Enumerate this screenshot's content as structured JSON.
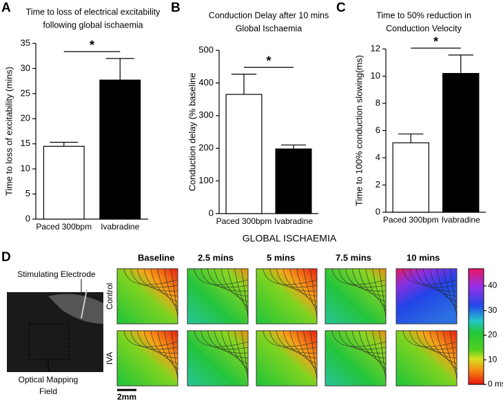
{
  "chart_data": [
    {
      "type": "bar",
      "panel": "A",
      "title": [
        "Time to loss of electrical excitability",
        "following global ischaemia"
      ],
      "y_label": "Time to loss of excitability (mins)",
      "categories": [
        "Paced 300bpm",
        "Ivabradine"
      ],
      "values": [
        14.5,
        27.7
      ],
      "errors": [
        0.8,
        4.3
      ],
      "colors": [
        "#ffffff",
        "#000000"
      ],
      "ylim": [
        0,
        35
      ],
      "yticks": [
        0,
        5,
        10,
        15,
        20,
        25,
        30,
        35
      ],
      "significance": "*"
    },
    {
      "type": "bar",
      "panel": "B",
      "title": [
        "Conduction Delay after 10 mins",
        "Global Ischaemia"
      ],
      "y_label": "Conduction delay (% baseline",
      "categories": [
        "Paced 300bpm",
        "Ivabradine"
      ],
      "values": [
        365,
        198
      ],
      "errors": [
        62,
        12
      ],
      "colors": [
        "#ffffff",
        "#000000"
      ],
      "ylim": [
        0,
        500
      ],
      "yticks": [
        0,
        100,
        200,
        300,
        400,
        500
      ],
      "significance": "*"
    },
    {
      "type": "bar",
      "panel": "C",
      "title": [
        "Time to 50% reduction in",
        "Conduction Velocity"
      ],
      "y_label": "Time to 100% conduction slowing(ms)",
      "categories": [
        "Paced 300bpm",
        "Ivabradine"
      ],
      "values": [
        5.1,
        10.2
      ],
      "errors": [
        0.65,
        1.35
      ],
      "colors": [
        "#ffffff",
        "#000000"
      ],
      "ylim": [
        0,
        12
      ],
      "yticks": [
        0,
        2,
        4,
        6,
        8,
        10,
        12
      ],
      "significance": "*"
    }
  ],
  "panel_d": {
    "panel": "D",
    "title": "GLOBAL ISCHAEMIA",
    "columns": [
      "Baseline",
      "2.5 mins",
      "5 mins",
      "7.5 mins",
      "10 mins"
    ],
    "rows": [
      "Control",
      "IVA"
    ],
    "electrode_label": "Stimulating Electrode",
    "field_label": [
      "Optical Mapping",
      "Field"
    ],
    "scale_bar": "2mm",
    "colorbar": {
      "lim": [
        0,
        47
      ],
      "ticks": [
        {
          "value": 0,
          "label": "0 ms"
        },
        10,
        20,
        30,
        40
      ]
    }
  }
}
